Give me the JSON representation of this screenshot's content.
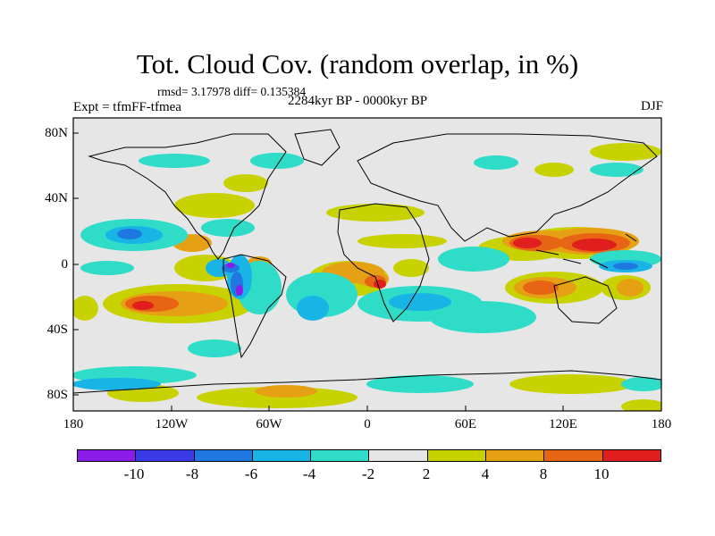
{
  "title": "Tot. Cloud Cov. (random overlap, in %)",
  "stats": "rmsd= 3.17978 diff= 0.135384",
  "experiment": "Expt = tfmFF-tfmea",
  "period": "2284kyr BP - 0000kyr BP",
  "season": "DJF",
  "y_ticks": [
    "80N",
    "40N",
    "0",
    "40S",
    "80S"
  ],
  "x_ticks": [
    "180",
    "120W",
    "60W",
    "0",
    "60E",
    "120E",
    "180"
  ],
  "colorbar": {
    "labels": [
      "-10",
      "-8",
      "-6",
      "-4",
      "-2",
      "2",
      "4",
      "8",
      "10"
    ],
    "colors": [
      "#8a1be8",
      "#3a3ae8",
      "#1e78e0",
      "#19b4e6",
      "#2edcc8",
      "#e6e6e6",
      "#c8d200",
      "#e6a014",
      "#e66414",
      "#e01e1e"
    ]
  }
}
